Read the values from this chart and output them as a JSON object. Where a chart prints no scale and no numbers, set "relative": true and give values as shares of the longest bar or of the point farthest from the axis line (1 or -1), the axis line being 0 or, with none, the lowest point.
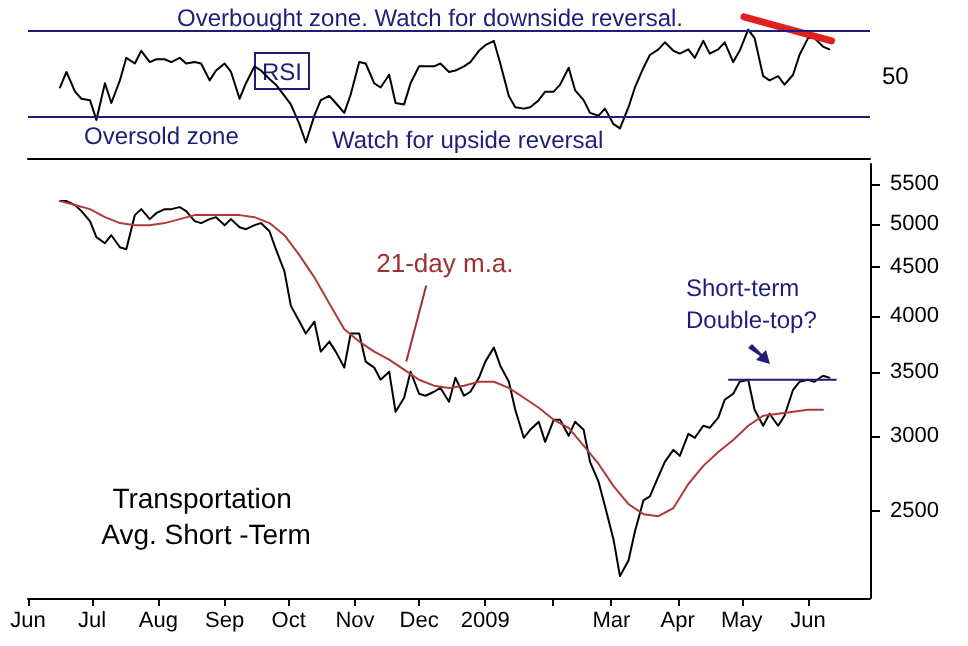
{
  "chart_data": [
    {
      "type": "line",
      "relative": true,
      "annotations": [
        "RSI",
        "Overbought zone. Watch for downside reversal.",
        "Oversold zone",
        "Watch for upside reversal",
        "50"
      ],
      "x": [
        "2008-06-16",
        "2008-06-19",
        "2008-06-23",
        "2008-06-26",
        "2008-06-30",
        "2008-07-03",
        "2008-07-07",
        "2008-07-10",
        "2008-07-14",
        "2008-07-17",
        "2008-07-21",
        "2008-07-24",
        "2008-07-28",
        "2008-07-31",
        "2008-08-04",
        "2008-08-07",
        "2008-08-11",
        "2008-08-14",
        "2008-08-18",
        "2008-08-21",
        "2008-08-25",
        "2008-08-28",
        "2008-09-01",
        "2008-09-04",
        "2008-09-08",
        "2008-09-11",
        "2008-09-15",
        "2008-09-18",
        "2008-09-22",
        "2008-09-25",
        "2008-09-29",
        "2008-10-02",
        "2008-10-06",
        "2008-10-09",
        "2008-10-13",
        "2008-10-16",
        "2008-10-20",
        "2008-10-23",
        "2008-10-27",
        "2008-10-30",
        "2008-11-03",
        "2008-11-06",
        "2008-11-10",
        "2008-11-13",
        "2008-11-17",
        "2008-11-20",
        "2008-11-24",
        "2008-11-27",
        "2008-12-01",
        "2008-12-04",
        "2008-12-08",
        "2008-12-11",
        "2008-12-15",
        "2008-12-18",
        "2008-12-22",
        "2008-12-25",
        "2008-12-29",
        "2009-01-01",
        "2009-01-05",
        "2009-01-08",
        "2009-01-12",
        "2009-01-15",
        "2009-01-19",
        "2009-01-22",
        "2009-01-26",
        "2009-01-29",
        "2009-02-02",
        "2009-02-05",
        "2009-02-09",
        "2009-02-12",
        "2009-02-16",
        "2009-02-19",
        "2009-02-23",
        "2009-02-26",
        "2009-03-02",
        "2009-03-05",
        "2009-03-09",
        "2009-03-12",
        "2009-03-16",
        "2009-03-19",
        "2009-03-23",
        "2009-03-26",
        "2009-03-30",
        "2009-04-02",
        "2009-04-06",
        "2009-04-09",
        "2009-04-13",
        "2009-04-16",
        "2009-04-20",
        "2009-04-23",
        "2009-04-27",
        "2009-04-30",
        "2009-05-04",
        "2009-05-07",
        "2009-05-11",
        "2009-05-14",
        "2009-05-18",
        "2009-05-21",
        "2009-05-25",
        "2009-05-28",
        "2009-06-01",
        "2009-06-04",
        "2009-06-08",
        "2009-06-11"
      ],
      "series": [
        {
          "color": "#000000",
          "values": [
            0.5,
            0.61,
            0.47,
            0.42,
            0.41,
            0.27,
            0.53,
            0.39,
            0.55,
            0.71,
            0.67,
            0.76,
            0.68,
            0.7,
            0.7,
            0.68,
            0.71,
            0.67,
            0.68,
            0.67,
            0.55,
            0.62,
            0.67,
            0.61,
            0.42,
            0.53,
            0.65,
            0.62,
            0.56,
            0.52,
            0.44,
            0.38,
            0.24,
            0.11,
            0.3,
            0.41,
            0.44,
            0.39,
            0.32,
            0.45,
            0.68,
            0.67,
            0.53,
            0.5,
            0.59,
            0.39,
            0.38,
            0.53,
            0.65,
            0.65,
            0.65,
            0.67,
            0.61,
            0.62,
            0.65,
            0.68,
            0.76,
            0.8,
            0.83,
            0.67,
            0.44,
            0.36,
            0.35,
            0.36,
            0.41,
            0.47,
            0.47,
            0.52,
            0.64,
            0.48,
            0.41,
            0.32,
            0.3,
            0.35,
            0.24,
            0.21,
            0.36,
            0.5,
            0.64,
            0.73,
            0.77,
            0.82,
            0.76,
            0.74,
            0.77,
            0.71,
            0.83,
            0.74,
            0.77,
            0.82,
            0.68,
            0.76,
            0.91,
            0.85,
            0.58,
            0.55,
            0.58,
            0.52,
            0.59,
            0.73,
            0.85,
            0.85,
            0.79,
            0.77
          ]
        },
        {
          "color": "#e02020",
          "x": [
            "2009-05-02",
            "2009-06-12"
          ],
          "values": [
            1,
            0.83
          ]
        }
      ],
      "xlim": [
        "2008-06-01",
        "2009-06-30"
      ],
      "ref_lines": [
        {
          "axis": "y",
          "value": 0.91,
          "color": "#1e1e78"
        },
        {
          "axis": "y",
          "value": 0.3,
          "color": "#1e1e78"
        }
      ]
    },
    {
      "type": "line",
      "title": "Transportation Avg. Short -Term",
      "log": true,
      "annotations": [
        {
          "text": "21-day m.a.",
          "x": "2008-11-25",
          "y": 3586
        },
        "Short-term Double-top?"
      ],
      "x": [
        "2008-06-16",
        "2008-06-19",
        "2008-06-23",
        "2008-06-26",
        "2008-06-30",
        "2008-07-03",
        "2008-07-07",
        "2008-07-10",
        "2008-07-14",
        "2008-07-17",
        "2008-07-21",
        "2008-07-24",
        "2008-07-28",
        "2008-07-31",
        "2008-08-04",
        "2008-08-07",
        "2008-08-11",
        "2008-08-14",
        "2008-08-18",
        "2008-08-21",
        "2008-08-25",
        "2008-08-28",
        "2008-09-01",
        "2008-09-04",
        "2008-09-08",
        "2008-09-11",
        "2008-09-15",
        "2008-09-18",
        "2008-09-22",
        "2008-09-25",
        "2008-09-29",
        "2008-10-02",
        "2008-10-06",
        "2008-10-09",
        "2008-10-13",
        "2008-10-16",
        "2008-10-20",
        "2008-10-23",
        "2008-10-27",
        "2008-10-30",
        "2008-11-03",
        "2008-11-06",
        "2008-11-10",
        "2008-11-13",
        "2008-11-17",
        "2008-11-20",
        "2008-11-24",
        "2008-11-27",
        "2008-12-01",
        "2008-12-04",
        "2008-12-08",
        "2008-12-11",
        "2008-12-15",
        "2008-12-18",
        "2008-12-22",
        "2008-12-25",
        "2008-12-29",
        "2009-01-01",
        "2009-01-05",
        "2009-01-08",
        "2009-01-12",
        "2009-01-15",
        "2009-01-19",
        "2009-01-22",
        "2009-01-26",
        "2009-01-29",
        "2009-02-02",
        "2009-02-05",
        "2009-02-09",
        "2009-02-12",
        "2009-02-16",
        "2009-02-19",
        "2009-02-23",
        "2009-02-26",
        "2009-03-02",
        "2009-03-05",
        "2009-03-09",
        "2009-03-12",
        "2009-03-16",
        "2009-03-19",
        "2009-03-23",
        "2009-03-26",
        "2009-03-30",
        "2009-04-02",
        "2009-04-06",
        "2009-04-09",
        "2009-04-13",
        "2009-04-16",
        "2009-04-20",
        "2009-04-23",
        "2009-04-27",
        "2009-04-30",
        "2009-05-04",
        "2009-05-07",
        "2009-05-11",
        "2009-05-14",
        "2009-05-18",
        "2009-05-21",
        "2009-05-25",
        "2009-05-28",
        "2009-06-01",
        "2009-06-04",
        "2009-06-08",
        "2009-06-11"
      ],
      "series": [
        {
          "color": "#000000",
          "values": [
            5277,
            5277,
            5227,
            5151,
            5029,
            4838,
            4768,
            4861,
            4722,
            4700,
            5102,
            5176,
            5053,
            5126,
            5176,
            5176,
            5201,
            5151,
            5029,
            5005,
            5053,
            5077,
            4980,
            5053,
            4956,
            4932,
            4980,
            5005,
            4908,
            4700,
            4456,
            4101,
            3949,
            3837,
            3949,
            3673,
            3763,
            3673,
            3535,
            3837,
            3837,
            3586,
            3535,
            3433,
            3500,
            3178,
            3287,
            3500,
            3319,
            3303,
            3335,
            3366,
            3256,
            3449,
            3303,
            3335,
            3449,
            3586,
            3709,
            3551,
            3416,
            3193,
            2985,
            3043,
            3102,
            2956,
            3117,
            3117,
            3000,
            3102,
            3043,
            2817,
            2684,
            2532,
            2336,
            2140,
            2222,
            2382,
            2568,
            2593,
            2721,
            2817,
            2900,
            2858,
            3014,
            2985,
            3073,
            3058,
            3133,
            3271,
            3319,
            3416,
            3433,
            3193,
            3073,
            3163,
            3073,
            3148,
            3351,
            3416,
            3433,
            3416,
            3466,
            3449
          ]
        },
        {
          "color": "#b03a3a",
          "x": [
            "2008-06-16",
            "2008-06-23",
            "2008-06-30",
            "2008-07-07",
            "2008-07-14",
            "2008-07-21",
            "2008-07-28",
            "2008-08-04",
            "2008-08-11",
            "2008-08-18",
            "2008-08-25",
            "2008-09-01",
            "2008-09-08",
            "2008-09-15",
            "2008-09-22",
            "2008-09-29",
            "2008-10-06",
            "2008-10-13",
            "2008-10-20",
            "2008-10-27",
            "2008-11-03",
            "2008-11-10",
            "2008-11-17",
            "2008-11-24",
            "2008-12-01",
            "2008-12-08",
            "2008-12-15",
            "2008-12-22",
            "2008-12-29",
            "2009-01-05",
            "2009-01-12",
            "2009-01-19",
            "2009-01-26",
            "2009-02-02",
            "2009-02-09",
            "2009-02-16",
            "2009-02-23",
            "2009-03-02",
            "2009-03-09",
            "2009-03-16",
            "2009-03-23",
            "2009-03-30",
            "2009-04-06",
            "2009-04-13",
            "2009-04-20",
            "2009-04-27",
            "2009-05-04",
            "2009-05-11",
            "2009-05-18",
            "2009-05-25",
            "2009-06-01",
            "2009-06-08"
          ],
          "values": [
            5277,
            5227,
            5176,
            5077,
            5005,
            4980,
            4980,
            5005,
            5053,
            5102,
            5102,
            5102,
            5102,
            5077,
            5005,
            4861,
            4634,
            4392,
            4125,
            3876,
            3763,
            3673,
            3603,
            3517,
            3433,
            3384,
            3366,
            3384,
            3416,
            3416,
            3366,
            3287,
            3209,
            3117,
            3058,
            2930,
            2803,
            2657,
            2545,
            2484,
            2472,
            2521,
            2671,
            2790,
            2885,
            2970,
            3073,
            3148,
            3163,
            3178,
            3193,
            3193
          ]
        },
        {
          "color": "#1e1e78",
          "x": [
            "2009-04-25",
            "2009-06-14"
          ],
          "values": [
            3433,
            3433
          ]
        }
      ],
      "xlim": [
        "2008-06-01",
        "2009-06-30"
      ],
      "ylim": [
        2030,
        5770
      ],
      "yticks": [
        2500,
        3000,
        3500,
        4000,
        4500,
        5000,
        5500
      ],
      "xticks": [
        {
          "value": "2008-06-01",
          "label": "Jun"
        },
        {
          "value": "2008-07-01",
          "label": "Jul"
        },
        {
          "value": "2008-08-01",
          "label": "Aug"
        },
        {
          "value": "2008-09-01",
          "label": "Sep"
        },
        {
          "value": "2008-10-01",
          "label": "Oct"
        },
        {
          "value": "2008-11-01",
          "label": "Nov"
        },
        {
          "value": "2008-12-01",
          "label": "Dec"
        },
        {
          "value": "2009-01-01",
          "label": "2009"
        },
        {
          "value": "2009-02-01",
          "label": null
        },
        {
          "value": "2009-03-01",
          "label": "Mar"
        },
        {
          "value": "2009-04-01",
          "label": "Apr"
        },
        {
          "value": "2009-05-01",
          "label": "May"
        },
        {
          "value": "2009-06-01",
          "label": "Jun"
        }
      ]
    }
  ]
}
